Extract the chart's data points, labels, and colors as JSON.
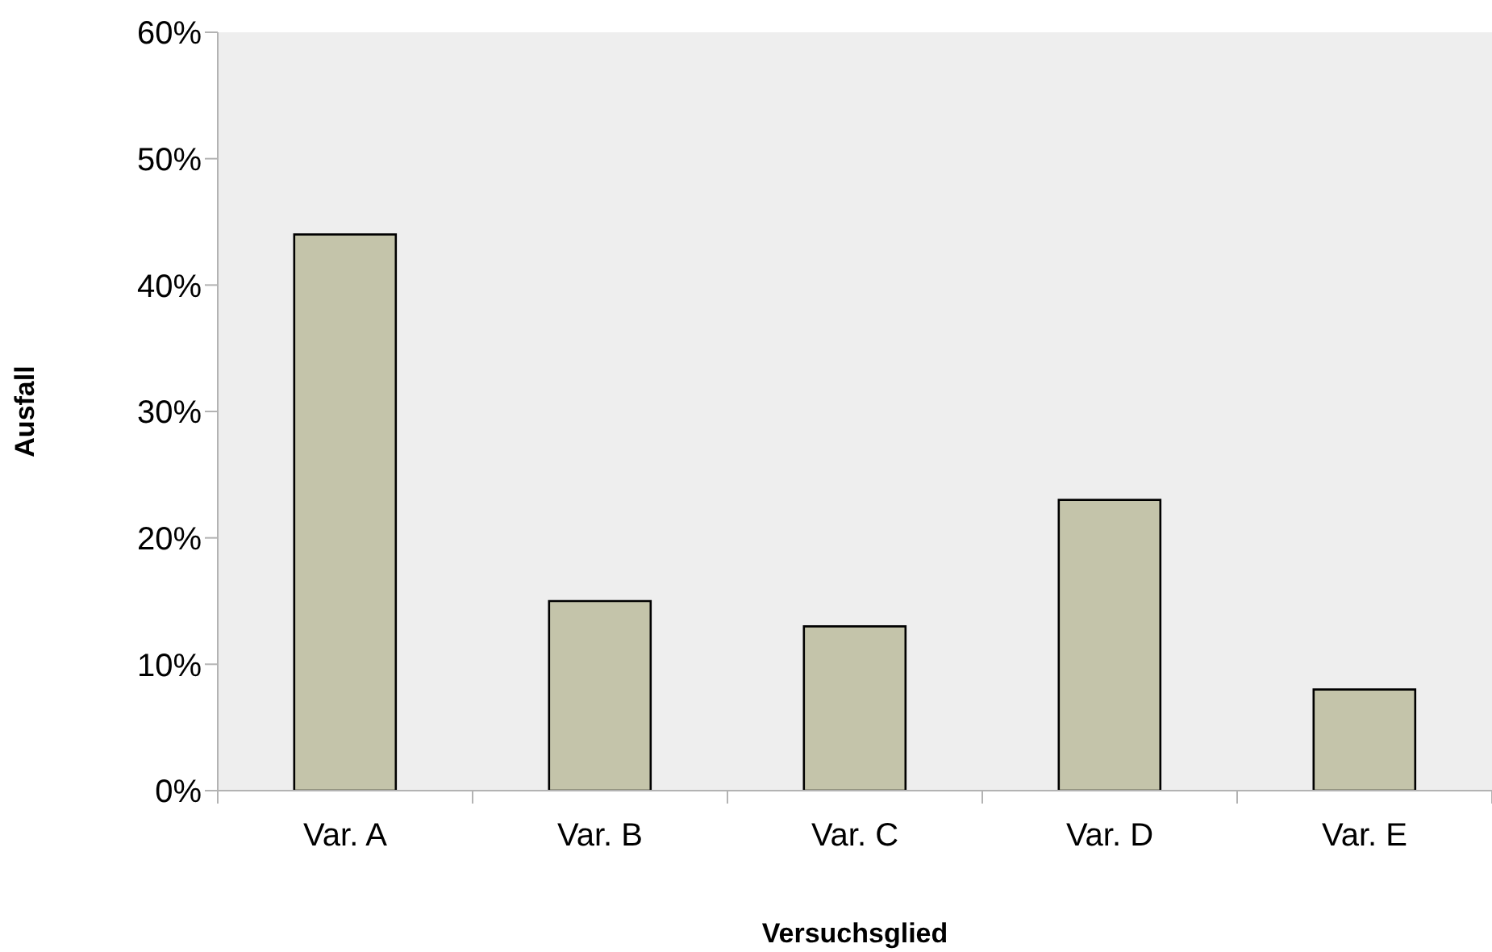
{
  "chart_data": {
    "type": "bar",
    "xlabel": "Versuchsglied",
    "ylabel": "Ausfall",
    "categories": [
      "Var. A",
      "Var. B",
      "Var. C",
      "Var. D",
      "Var. E"
    ],
    "values": [
      44,
      15,
      13,
      23,
      8
    ],
    "color": "#c4c4aa",
    "ylim": [
      0,
      60
    ],
    "yticks": [
      {
        "value": 0,
        "label": "0%"
      },
      {
        "value": 10,
        "label": "10%"
      },
      {
        "value": 20,
        "label": "20%"
      },
      {
        "value": 30,
        "label": "30%"
      },
      {
        "value": 40,
        "label": "40%"
      },
      {
        "value": 50,
        "label": "50%"
      },
      {
        "value": 60,
        "label": "60%"
      }
    ],
    "grid": false
  }
}
